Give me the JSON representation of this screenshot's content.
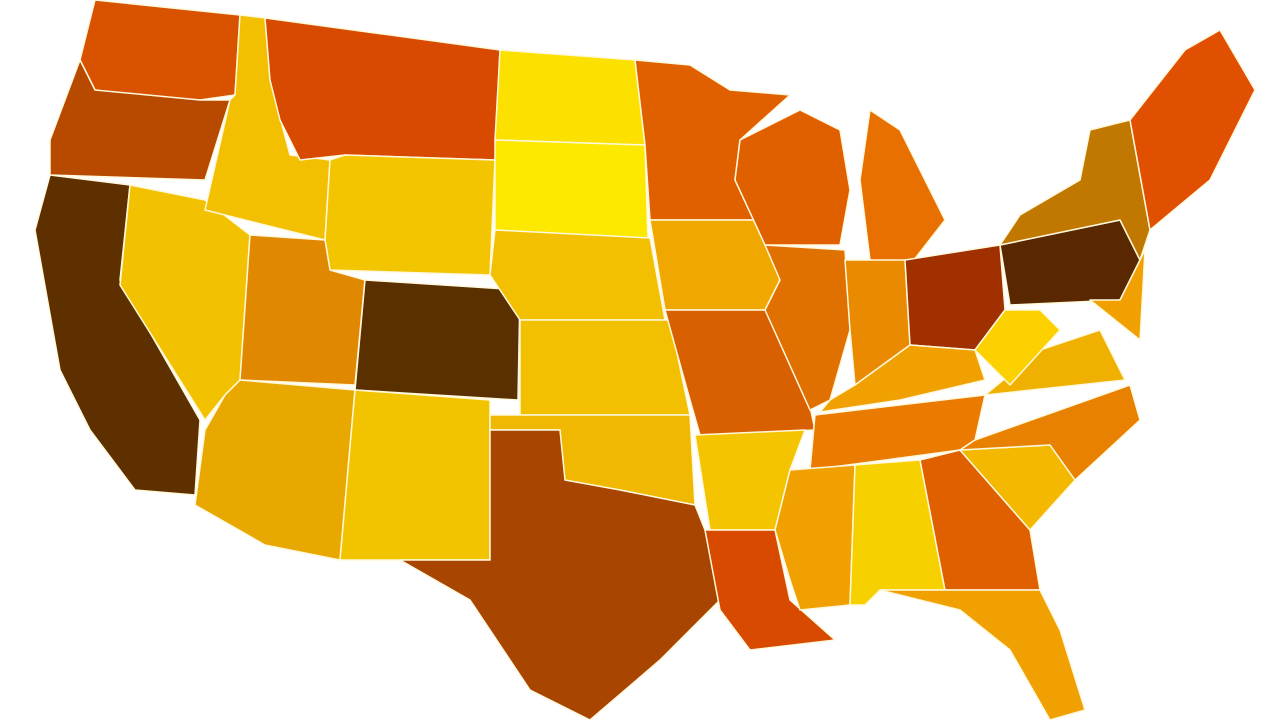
{
  "map": {
    "stroke": "#fff8dc",
    "background": "#ffffff",
    "region_colors": [
      "#d85200",
      "#b84a00",
      "#5e3000",
      "#f2c200",
      "#f2c000",
      "#d84a00",
      "#f3c400",
      "#e08800",
      "#5a3000",
      "#e8a800",
      "#f2c400",
      "#fbe000",
      "#fde900",
      "#f2c000",
      "#f2c000",
      "#f0b800",
      "#a84500",
      "#e06000",
      "#f0a800",
      "#d86000",
      "#f5c400",
      "#d84a00",
      "#e06000",
      "#e07000",
      "#e87000",
      "#ea8a00",
      "#a03000",
      "#f0a000",
      "#ea7a00",
      "#f0a000",
      "#f7d000",
      "#e06000",
      "#f0a000",
      "#f5b800",
      "#e88000",
      "#f0b000",
      "#fdd000",
      "#5a2800",
      "#c07800",
      "#e05000",
      "#f0a000"
    ]
  }
}
